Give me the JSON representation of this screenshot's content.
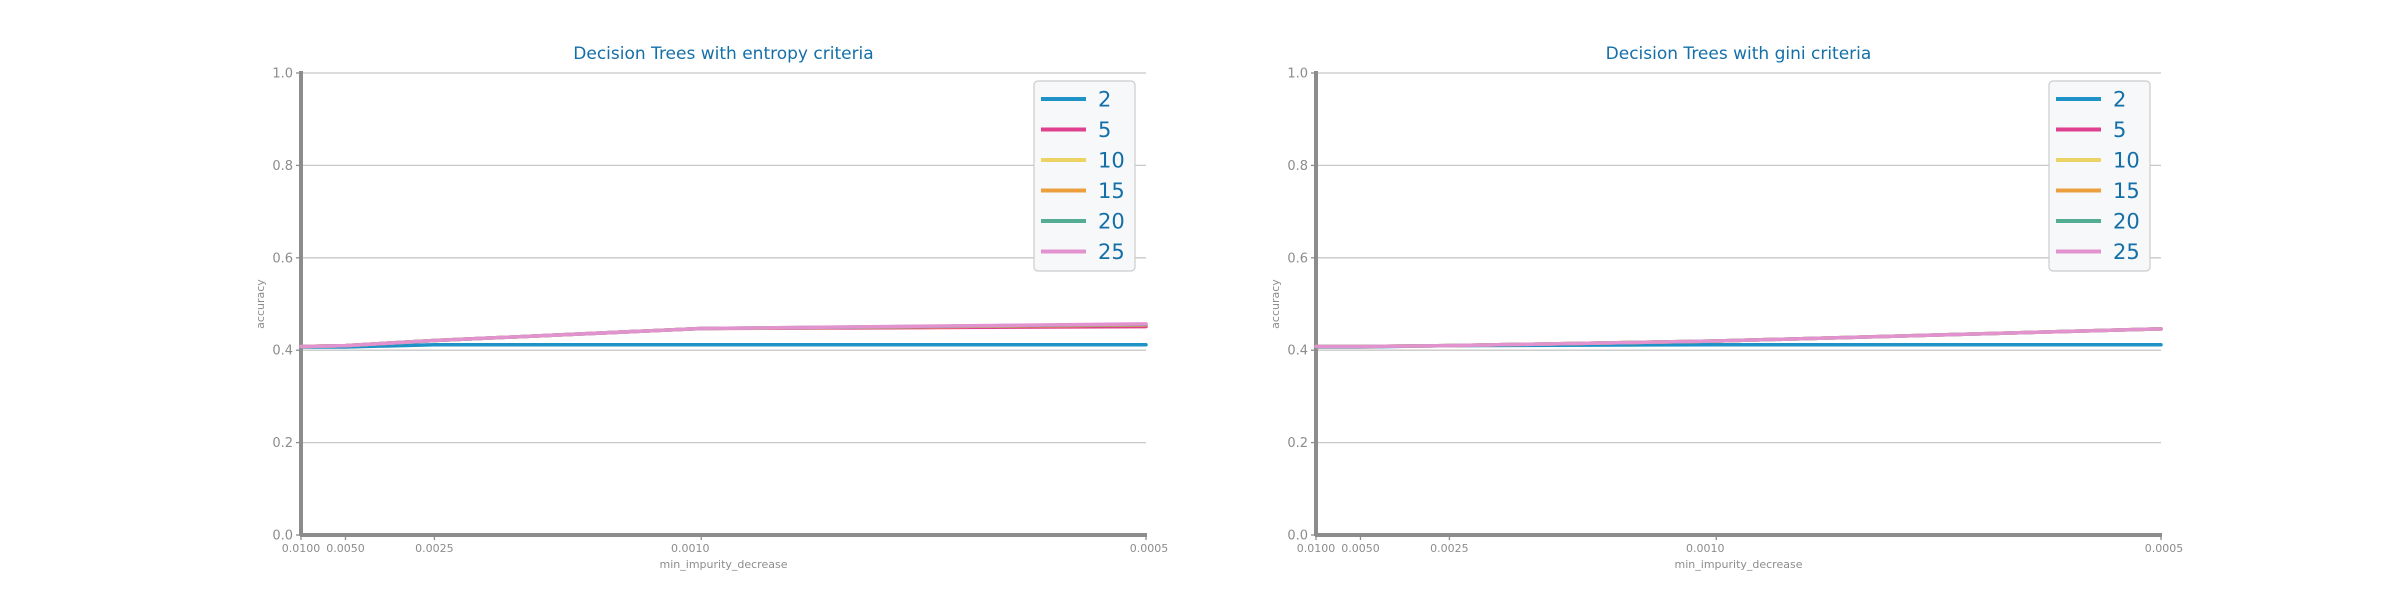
{
  "chart_data": [
    {
      "type": "line",
      "title": "Decision Trees with entropy criteria",
      "xlabel": "min_impurity_decrease",
      "ylabel": "accuracy",
      "x": [
        0.01,
        0.005,
        0.0025,
        0.001,
        0.0005
      ],
      "x_tick_labels": [
        "0.0100",
        "0.0050",
        "0.0025",
        "0.0010",
        "0.0005"
      ],
      "x_scale": "reciprocal",
      "ylim": [
        0.0,
        1.0
      ],
      "y_ticks": [
        0.0,
        0.2,
        0.4,
        0.6,
        0.8,
        1.0
      ],
      "y_tick_labels": [
        "0.0",
        "0.2",
        "0.4",
        "0.6",
        "0.8",
        "1.0"
      ],
      "grid": "horizontal",
      "legend_position": "top-right",
      "series": [
        {
          "name": "2",
          "values": [
            0.407,
            0.407,
            0.412,
            0.412,
            0.412
          ]
        },
        {
          "name": "5",
          "values": [
            0.408,
            0.41,
            0.421,
            0.447,
            0.451
          ]
        },
        {
          "name": "10",
          "values": [
            0.408,
            0.41,
            0.421,
            0.447,
            0.455
          ]
        },
        {
          "name": "15",
          "values": [
            0.408,
            0.41,
            0.421,
            0.447,
            0.455
          ]
        },
        {
          "name": "20",
          "values": [
            0.408,
            0.41,
            0.421,
            0.447,
            0.456
          ]
        },
        {
          "name": "25",
          "values": [
            0.408,
            0.41,
            0.421,
            0.447,
            0.457
          ]
        }
      ]
    },
    {
      "type": "line",
      "title": "Decision Trees with gini criteria",
      "xlabel": "min_impurity_decrease",
      "ylabel": "accuracy",
      "x": [
        0.01,
        0.005,
        0.0025,
        0.001,
        0.0005
      ],
      "x_tick_labels": [
        "0.0100",
        "0.0050",
        "0.0025",
        "0.0010",
        "0.0005"
      ],
      "x_scale": "reciprocal",
      "ylim": [
        0.0,
        1.0
      ],
      "y_ticks": [
        0.0,
        0.2,
        0.4,
        0.6,
        0.8,
        1.0
      ],
      "y_tick_labels": [
        "0.0",
        "0.2",
        "0.4",
        "0.6",
        "0.8",
        "1.0"
      ],
      "grid": "horizontal",
      "legend_position": "top-right",
      "series": [
        {
          "name": "2",
          "values": [
            0.407,
            0.407,
            0.41,
            0.412,
            0.412
          ]
        },
        {
          "name": "5",
          "values": [
            0.408,
            0.408,
            0.41,
            0.42,
            0.446
          ]
        },
        {
          "name": "10",
          "values": [
            0.408,
            0.408,
            0.41,
            0.42,
            0.446
          ]
        },
        {
          "name": "15",
          "values": [
            0.408,
            0.408,
            0.41,
            0.42,
            0.446
          ]
        },
        {
          "name": "20",
          "values": [
            0.408,
            0.408,
            0.41,
            0.42,
            0.446
          ]
        },
        {
          "name": "25",
          "values": [
            0.408,
            0.408,
            0.41,
            0.42,
            0.446
          ]
        }
      ]
    }
  ],
  "colors": {
    "series": [
      "#1f93c8",
      "#e0418e",
      "#edd264",
      "#ec9f3f",
      "#54ad92",
      "#e293cf"
    ],
    "title_text": "#146fa8",
    "legend_text": "#146fa8",
    "tick_text": "#8c8c8c",
    "axis_line": "#8c8c8c",
    "grid": "#c8c8c8",
    "legend_border": "#cccccc",
    "legend_background": "#f7f8f9"
  }
}
